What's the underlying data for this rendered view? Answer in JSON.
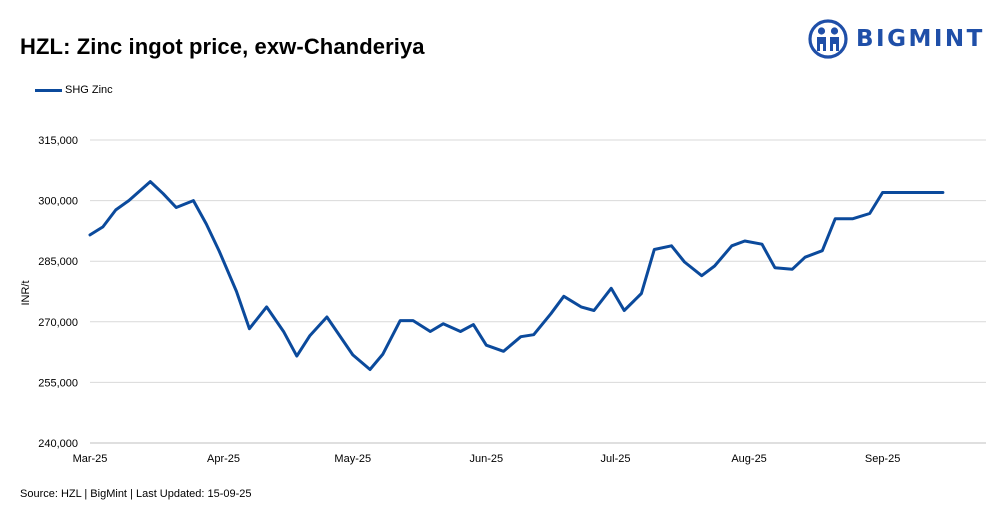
{
  "header": {
    "title": "HZL: Zinc ingot price, exw-Chanderiya",
    "logo_text": "BIGMINT"
  },
  "footer": {
    "source": "Source: HZL | BigMint | Last Updated: 15-09-25"
  },
  "colors": {
    "series": "#0b4a9c",
    "logo": "#1f4fa8",
    "grid": "#d9d9d9"
  },
  "chart_data": {
    "type": "line",
    "title": "HZL: Zinc ingot price, exw-Chanderiya",
    "xlabel": "",
    "ylabel": "INR/t",
    "ylim": [
      240000,
      315000
    ],
    "yticks": [
      240000,
      255000,
      270000,
      285000,
      300000,
      315000
    ],
    "ytick_labels": [
      "240,000",
      "255,000",
      "270,000",
      "285,000",
      "300,000",
      "315,000"
    ],
    "xlim": [
      "2025-03-01",
      "2025-09-25"
    ],
    "xticks": [
      "2025-03-01",
      "2025-04-01",
      "2025-05-01",
      "2025-06-01",
      "2025-07-01",
      "2025-08-01",
      "2025-09-01"
    ],
    "xtick_labels": [
      "Mar-25",
      "Apr-25",
      "May-25",
      "Jun-25",
      "Jul-25",
      "Aug-25",
      "Sep-25"
    ],
    "grid": "horizontal",
    "legend": "top-left",
    "series": [
      {
        "name": "SHG Zinc",
        "x": [
          "2025-03-01",
          "2025-03-04",
          "2025-03-07",
          "2025-03-10",
          "2025-03-15",
          "2025-03-18",
          "2025-03-21",
          "2025-03-25",
          "2025-03-28",
          "2025-03-31",
          "2025-04-04",
          "2025-04-07",
          "2025-04-11",
          "2025-04-15",
          "2025-04-18",
          "2025-04-21",
          "2025-04-25",
          "2025-04-28",
          "2025-05-01",
          "2025-05-05",
          "2025-05-08",
          "2025-05-12",
          "2025-05-15",
          "2025-05-19",
          "2025-05-22",
          "2025-05-26",
          "2025-05-29",
          "2025-06-01",
          "2025-06-05",
          "2025-06-09",
          "2025-06-12",
          "2025-06-16",
          "2025-06-19",
          "2025-06-23",
          "2025-06-26",
          "2025-06-30",
          "2025-07-03",
          "2025-07-07",
          "2025-07-10",
          "2025-07-14",
          "2025-07-17",
          "2025-07-21",
          "2025-07-24",
          "2025-07-28",
          "2025-07-31",
          "2025-08-04",
          "2025-08-07",
          "2025-08-11",
          "2025-08-14",
          "2025-08-18",
          "2025-08-21",
          "2025-08-25",
          "2025-08-29",
          "2025-09-01",
          "2025-09-04",
          "2025-09-08",
          "2025-09-11",
          "2025-09-15"
        ],
        "values": [
          291500,
          293500,
          297700,
          300000,
          304700,
          301700,
          298300,
          300000,
          294200,
          287500,
          277500,
          268300,
          273700,
          267500,
          261500,
          266500,
          271200,
          266500,
          261800,
          258200,
          262000,
          270300,
          270300,
          267600,
          269500,
          267600,
          269300,
          264200,
          262700,
          266300,
          266800,
          272000,
          276300,
          273700,
          272800,
          278300,
          272800,
          277000,
          287900,
          288800,
          284800,
          281400,
          283800,
          288800,
          290000,
          289200,
          283400,
          283000,
          286000,
          287600,
          295500,
          295500,
          296800,
          302000,
          302000,
          302000,
          302000,
          302000
        ]
      }
    ]
  }
}
